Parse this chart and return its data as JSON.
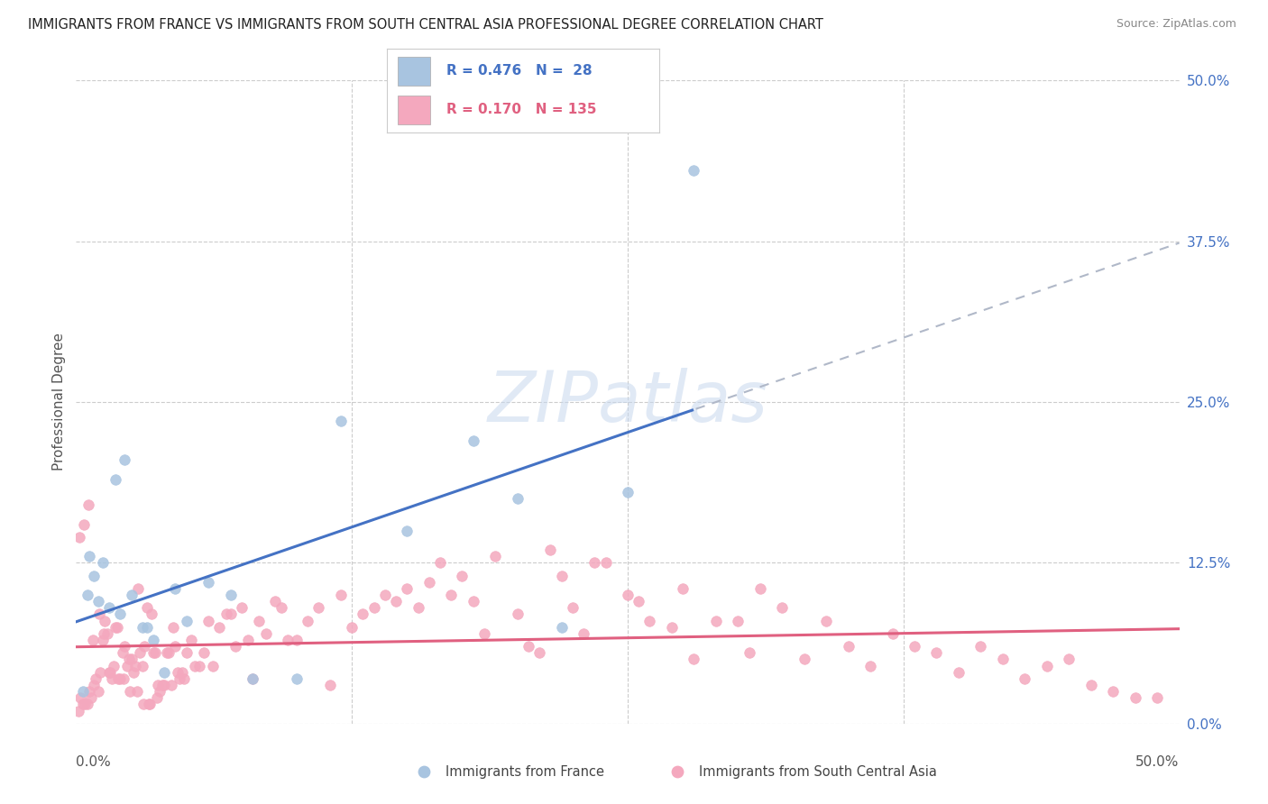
{
  "title": "IMMIGRANTS FROM FRANCE VS IMMIGRANTS FROM SOUTH CENTRAL ASIA PROFESSIONAL DEGREE CORRELATION CHART",
  "source": "Source: ZipAtlas.com",
  "ylabel": "Professional Degree",
  "right_ytick_vals": [
    0.0,
    12.5,
    25.0,
    37.5,
    50.0
  ],
  "xlim": [
    0.0,
    50.0
  ],
  "ylim": [
    0.0,
    50.0
  ],
  "color_france": "#a8c4e0",
  "color_asia": "#f4a8be",
  "color_france_line": "#4472c4",
  "color_asia_line": "#e06080",
  "color_dashed": "#b0b8c8",
  "france_x": [
    0.3,
    0.5,
    0.6,
    0.8,
    1.0,
    1.2,
    1.5,
    1.8,
    2.0,
    2.2,
    2.5,
    3.0,
    3.2,
    3.5,
    4.0,
    4.5,
    5.0,
    6.0,
    7.0,
    8.0,
    10.0,
    12.0,
    15.0,
    18.0,
    20.0,
    22.0,
    25.0,
    28.0
  ],
  "france_y": [
    2.5,
    10.0,
    13.0,
    11.5,
    9.5,
    12.5,
    9.0,
    19.0,
    8.5,
    20.5,
    10.0,
    7.5,
    7.5,
    6.5,
    4.0,
    10.5,
    8.0,
    11.0,
    10.0,
    3.5,
    3.5,
    23.5,
    15.0,
    22.0,
    17.5,
    7.5,
    18.0,
    43.0
  ],
  "asia_x": [
    0.1,
    0.2,
    0.3,
    0.4,
    0.5,
    0.6,
    0.7,
    0.8,
    0.9,
    1.0,
    1.1,
    1.2,
    1.3,
    1.4,
    1.5,
    1.6,
    1.7,
    1.8,
    1.9,
    2.0,
    2.1,
    2.2,
    2.3,
    2.4,
    2.5,
    2.6,
    2.7,
    2.8,
    2.9,
    3.0,
    3.1,
    3.2,
    3.3,
    3.4,
    3.5,
    3.6,
    3.7,
    3.8,
    3.9,
    4.0,
    4.1,
    4.2,
    4.3,
    4.4,
    4.5,
    4.6,
    4.7,
    4.8,
    4.9,
    5.0,
    5.2,
    5.4,
    5.6,
    5.8,
    6.0,
    6.2,
    6.5,
    6.8,
    7.0,
    7.2,
    7.5,
    7.8,
    8.0,
    8.3,
    8.6,
    9.0,
    9.3,
    9.6,
    10.0,
    10.5,
    11.0,
    11.5,
    12.0,
    12.5,
    13.0,
    13.5,
    14.0,
    14.5,
    15.0,
    15.5,
    16.0,
    16.5,
    17.0,
    17.5,
    18.0,
    18.5,
    19.0,
    20.0,
    20.5,
    21.0,
    21.5,
    22.0,
    22.5,
    23.0,
    23.5,
    24.0,
    25.0,
    25.5,
    26.0,
    27.0,
    27.5,
    28.0,
    29.0,
    30.0,
    30.5,
    31.0,
    32.0,
    33.0,
    34.0,
    35.0,
    36.0,
    37.0,
    38.0,
    39.0,
    40.0,
    41.0,
    42.0,
    43.0,
    44.0,
    45.0,
    46.0,
    47.0,
    48.0,
    49.0,
    0.15,
    0.35,
    0.55,
    0.75,
    1.05,
    1.25,
    1.55,
    1.85,
    2.15,
    2.45,
    2.75,
    3.05,
    3.35,
    3.65
  ],
  "asia_y": [
    1.0,
    2.0,
    1.5,
    1.5,
    1.5,
    2.5,
    2.0,
    3.0,
    3.5,
    2.5,
    4.0,
    6.5,
    8.0,
    7.0,
    4.0,
    3.5,
    4.5,
    7.5,
    3.5,
    3.5,
    5.5,
    6.0,
    4.5,
    5.0,
    5.0,
    4.0,
    4.5,
    10.5,
    5.5,
    4.5,
    6.0,
    9.0,
    1.5,
    8.5,
    5.5,
    5.5,
    3.0,
    2.5,
    3.0,
    3.0,
    5.5,
    5.5,
    3.0,
    7.5,
    6.0,
    4.0,
    3.5,
    4.0,
    3.5,
    5.5,
    6.5,
    4.5,
    4.5,
    5.5,
    8.0,
    4.5,
    7.5,
    8.5,
    8.5,
    6.0,
    9.0,
    6.5,
    3.5,
    8.0,
    7.0,
    9.5,
    9.0,
    6.5,
    6.5,
    8.0,
    9.0,
    3.0,
    10.0,
    7.5,
    8.5,
    9.0,
    10.0,
    9.5,
    10.5,
    9.0,
    11.0,
    12.5,
    10.0,
    11.5,
    9.5,
    7.0,
    13.0,
    8.5,
    6.0,
    5.5,
    13.5,
    11.5,
    9.0,
    7.0,
    12.5,
    12.5,
    10.0,
    9.5,
    8.0,
    7.5,
    10.5,
    5.0,
    8.0,
    8.0,
    5.5,
    10.5,
    9.0,
    5.0,
    8.0,
    6.0,
    4.5,
    7.0,
    6.0,
    5.5,
    4.0,
    6.0,
    5.0,
    3.5,
    4.5,
    5.0,
    3.0,
    2.5,
    2.0,
    2.0,
    14.5,
    15.5,
    17.0,
    6.5,
    8.5,
    7.0,
    4.0,
    7.5,
    3.5,
    2.5,
    2.5,
    1.5,
    1.5,
    2.0
  ]
}
